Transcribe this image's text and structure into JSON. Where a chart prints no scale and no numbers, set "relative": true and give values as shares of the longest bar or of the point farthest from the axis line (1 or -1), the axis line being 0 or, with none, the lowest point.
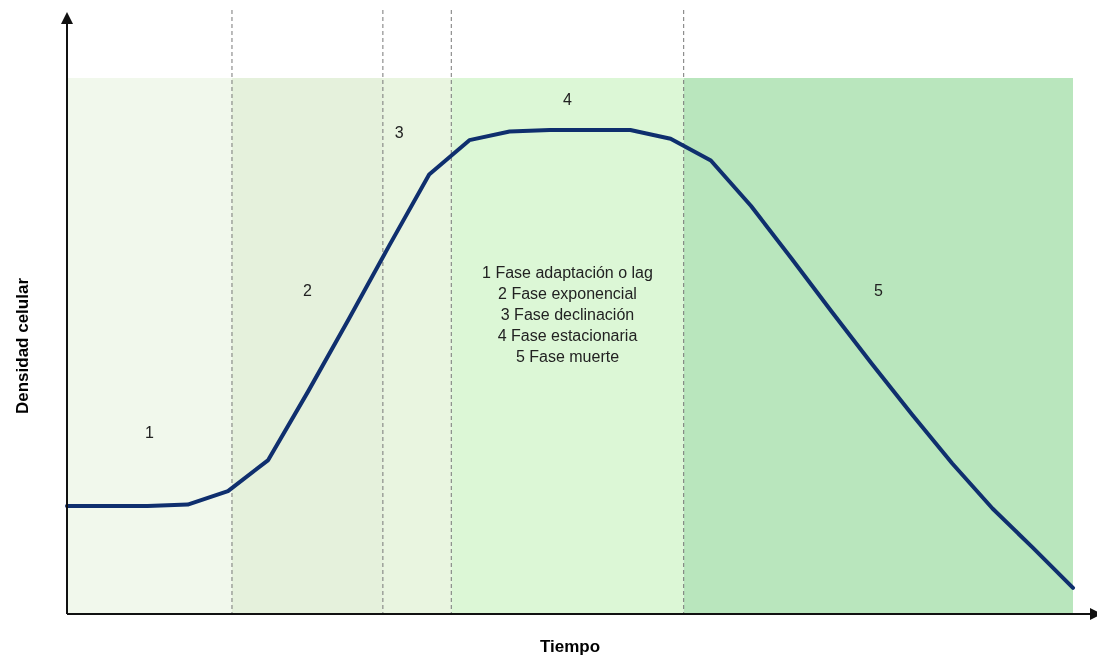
{
  "chart_data": {
    "type": "line",
    "relative": true,
    "xlabel": "Tiempo",
    "ylabel": "Densidad celular",
    "categories": [
      null,
      null,
      null,
      null,
      null,
      null,
      null,
      null,
      null,
      null,
      null,
      null,
      null,
      null,
      null,
      null,
      null,
      null,
      null,
      null,
      null,
      null,
      null,
      null,
      null,
      null
    ],
    "series": [
      {
        "color": "#0f2f6e",
        "values": [
          0.223,
          0.223,
          0.223,
          0.226,
          0.254,
          0.318,
          0.461,
          0.609,
          0.76,
          0.908,
          0.979,
          0.997,
          1,
          1,
          1,
          0.982,
          0.937,
          0.843,
          0.735,
          0.625,
          0.517,
          0.412,
          0.311,
          0.218,
          0.137,
          0.054
        ]
      }
    ],
    "annotations": [
      "1",
      "2",
      "3",
      "4",
      "5",
      "1 Fase adaptación o lag",
      "2 Fase exponencial",
      "3 Fase declinación",
      "4 Fase estacionaria",
      "5 Fase muerte"
    ]
  }
}
